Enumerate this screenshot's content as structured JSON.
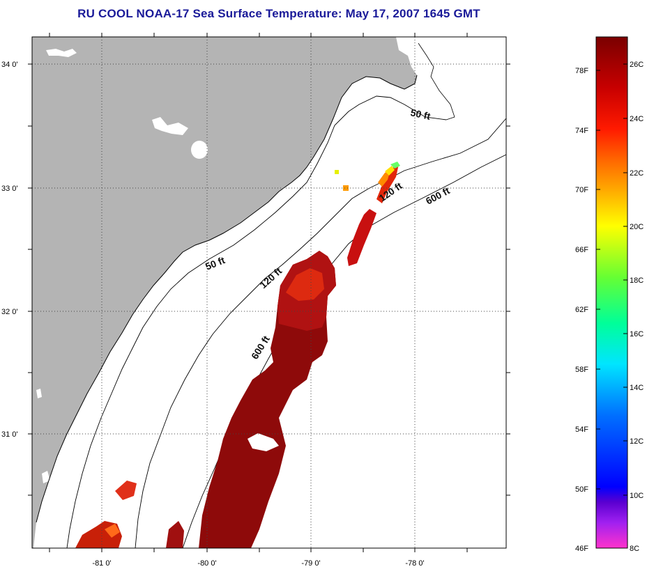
{
  "title": "RU COOL  NOAA-17  Sea Surface Temperature:  May 17, 2007 1645 GMT",
  "map": {
    "lat_labels": [
      "34 0'",
      "33 0'",
      "32 0'",
      "31 0'"
    ],
    "lon_labels": [
      "-81 0'",
      "-80 0'",
      "-79 0'",
      "-78 0'"
    ],
    "contour_labels": [
      "50 ft",
      "120 ft",
      "600 ft",
      "50 ft",
      "120 ft",
      "600 ft"
    ],
    "colors": {
      "land": "#b4b4b4",
      "ocean": "#ffffff",
      "grid": "#444444"
    }
  },
  "colorbar": {
    "fahrenheit_labels": [
      "78F",
      "74F",
      "70F",
      "66F",
      "62F",
      "58F",
      "54F",
      "50F",
      "46F"
    ],
    "celsius_labels": [
      "26C",
      "24C",
      "22C",
      "20C",
      "18C",
      "16C",
      "14C",
      "12C",
      "10C",
      "8C"
    ],
    "range_c": [
      8,
      27
    ]
  }
}
